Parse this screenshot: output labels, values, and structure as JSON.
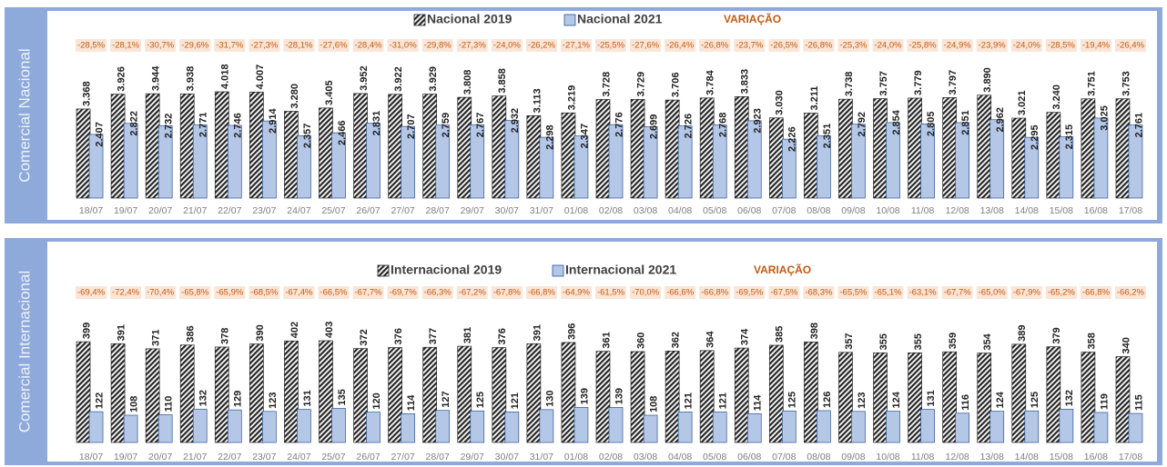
{
  "chart_data": [
    {
      "type": "bar",
      "side_label": "Comercial Nacional",
      "categories": [
        "18/07",
        "19/07",
        "20/07",
        "21/07",
        "22/07",
        "23/07",
        "24/07",
        "25/07",
        "26/07",
        "27/07",
        "28/07",
        "29/07",
        "30/07",
        "31/07",
        "01/08",
        "02/08",
        "03/08",
        "04/08",
        "05/08",
        "06/08",
        "07/08",
        "08/08",
        "09/08",
        "10/08",
        "11/08",
        "12/08",
        "13/08",
        "14/08",
        "15/08",
        "16/08",
        "17/08"
      ],
      "series": [
        {
          "name": "Nacional 2019",
          "color": "#262626",
          "pattern": "hatch",
          "values": [
            3368,
            3926,
            3944,
            3938,
            4018,
            4007,
            3280,
            3405,
            3952,
            3922,
            3929,
            3808,
            3858,
            3113,
            3219,
            3728,
            3729,
            3706,
            3784,
            3833,
            3030,
            3211,
            3738,
            3757,
            3779,
            3797,
            3890,
            3021,
            3240,
            3751,
            3753
          ],
          "value_labels": [
            "3.368",
            "3.926",
            "3.944",
            "3.938",
            "4.018",
            "4.007",
            "3.280",
            "3.405",
            "3.952",
            "3.922",
            "3.929",
            "3.808",
            "3.858",
            "3.113",
            "3.219",
            "3.728",
            "3.729",
            "3.706",
            "3.784",
            "3.833",
            "3.030",
            "3.211",
            "3.738",
            "3.757",
            "3.779",
            "3.797",
            "3.890",
            "3.021",
            "3.240",
            "3.751",
            "3.753"
          ]
        },
        {
          "name": "Nacional 2021",
          "color": "#b4c7e7",
          "values": [
            2407,
            2822,
            2732,
            2771,
            2746,
            2914,
            2357,
            2466,
            2831,
            2707,
            2759,
            2767,
            2932,
            2298,
            2347,
            2776,
            2699,
            2726,
            2768,
            2923,
            2226,
            2351,
            2792,
            2854,
            2805,
            2851,
            2962,
            2295,
            2315,
            3025,
            2761
          ],
          "value_labels": [
            "2.407",
            "2.822",
            "2.732",
            "2.771",
            "2.746",
            "2.914",
            "2.357",
            "2.466",
            "2.831",
            "2.707",
            "2.759",
            "2.767",
            "2.932",
            "2.298",
            "2.347",
            "2.776",
            "2.699",
            "2.726",
            "2.768",
            "2.923",
            "2.226",
            "2.351",
            "2.792",
            "2.854",
            "2.805",
            "2.851",
            "2.962",
            "2.295",
            "2.315",
            "3.025",
            "2.761"
          ]
        }
      ],
      "variation": {
        "name": "VARIAÇÃO",
        "color": "#c55a11",
        "background": "#fbe5d6",
        "values": [
          -28.5,
          -28.1,
          -30.7,
          -29.6,
          -31.7,
          -27.3,
          -28.1,
          -27.6,
          -28.4,
          -31.0,
          -29.8,
          -27.3,
          -24.0,
          -26.2,
          -27.1,
          -25.5,
          -27.6,
          -26.4,
          -26.8,
          -23.7,
          -26.5,
          -26.8,
          -25.3,
          -24.0,
          -25.8,
          -24.9,
          -23.9,
          -24.0,
          -28.5,
          -19.4,
          -26.4
        ],
        "value_labels": [
          "-28,5%",
          "-28,1%",
          "-30,7%",
          "-29,6%",
          "-31,7%",
          "-27,3%",
          "-28,1%",
          "-27,6%",
          "-28,4%",
          "-31,0%",
          "-29,8%",
          "-27,3%",
          "-24,0%",
          "-26,2%",
          "-27,1%",
          "-25,5%",
          "-27,6%",
          "-26,4%",
          "-26,8%",
          "-23,7%",
          "-26,5%",
          "-26,8%",
          "-25,3%",
          "-24,0%",
          "-25,8%",
          "-24,9%",
          "-23,9%",
          "-24,0%",
          "-28,5%",
          "-19,4%",
          "-26,4%"
        ]
      }
    },
    {
      "type": "bar",
      "side_label": "Comercial Internacional",
      "categories": [
        "18/07",
        "19/07",
        "20/07",
        "21/07",
        "22/07",
        "23/07",
        "24/07",
        "25/07",
        "26/07",
        "27/07",
        "28/07",
        "29/07",
        "30/07",
        "31/07",
        "01/08",
        "02/08",
        "03/08",
        "04/08",
        "05/08",
        "06/08",
        "07/08",
        "08/08",
        "09/08",
        "10/08",
        "11/08",
        "12/08",
        "13/08",
        "14/08",
        "15/08",
        "16/08",
        "17/08"
      ],
      "series": [
        {
          "name": "Internacional 2019",
          "color": "#262626",
          "pattern": "hatch",
          "values": [
            399,
            391,
            371,
            386,
            378,
            390,
            402,
            403,
            372,
            376,
            377,
            381,
            376,
            391,
            396,
            361,
            360,
            362,
            364,
            374,
            385,
            398,
            357,
            355,
            355,
            359,
            354,
            389,
            379,
            358,
            340
          ]
        },
        {
          "name": "Internacional 2021",
          "color": "#b4c7e7",
          "values": [
            122,
            108,
            110,
            132,
            129,
            123,
            131,
            135,
            120,
            114,
            127,
            125,
            121,
            130,
            139,
            139,
            108,
            121,
            121,
            114,
            125,
            126,
            123,
            124,
            131,
            116,
            124,
            125,
            132,
            119,
            115
          ]
        }
      ],
      "variation": {
        "name": "VARIAÇÃO",
        "color": "#c55a11",
        "background": "#fbe5d6",
        "values": [
          -69.4,
          -72.4,
          -70.4,
          -65.8,
          -65.9,
          -68.5,
          -67.4,
          -66.5,
          -67.7,
          -69.7,
          -66.3,
          -67.2,
          -67.8,
          -66.8,
          -64.9,
          -61.5,
          -70.0,
          -66.6,
          -66.8,
          -69.5,
          -67.5,
          -68.3,
          -65.5,
          -65.1,
          -63.1,
          -67.7,
          -65.0,
          -67.9,
          -65.2,
          -66.8,
          -66.2
        ],
        "value_labels": [
          "-69,4%",
          "-72,4%",
          "-70,4%",
          "-65,8%",
          "-65,9%",
          "-68,5%",
          "-67,4%",
          "-66,5%",
          "-67,7%",
          "-69,7%",
          "-66,3%",
          "-67,2%",
          "-67,8%",
          "-66,8%",
          "-64,9%",
          "-61,5%",
          "-70,0%",
          "-66,6%",
          "-66,8%",
          "-69,5%",
          "-67,5%",
          "-68,3%",
          "-65,5%",
          "-65,1%",
          "-63,1%",
          "-67,7%",
          "-65,0%",
          "-67,9%",
          "-65,2%",
          "-66,8%",
          "-66,2%"
        ]
      }
    }
  ]
}
